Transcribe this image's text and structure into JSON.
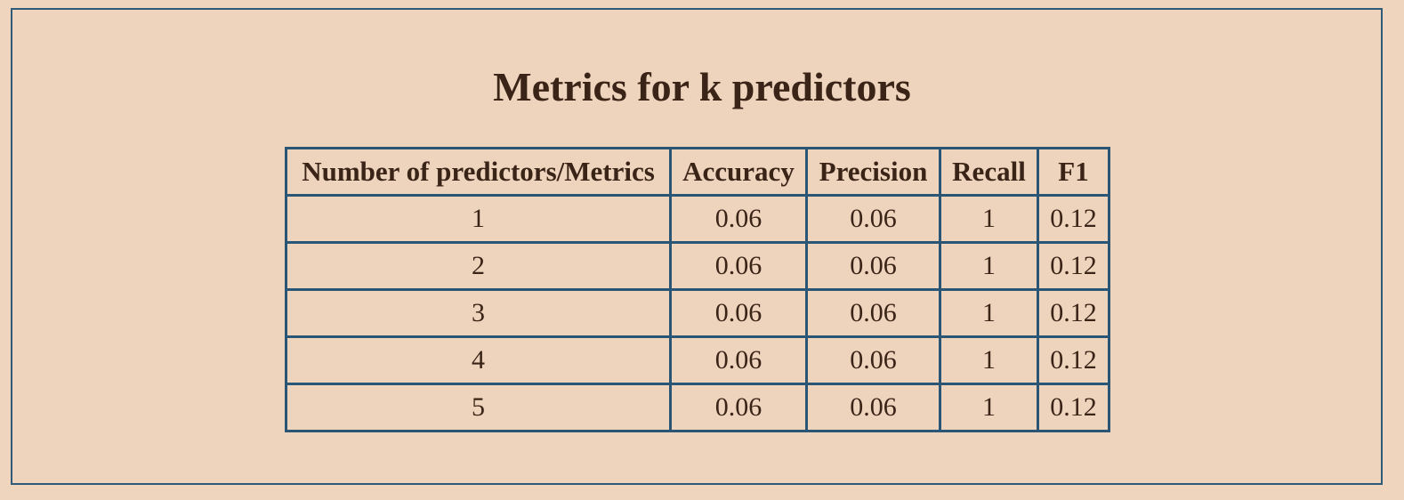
{
  "title": "Metrics for k predictors",
  "table": {
    "headers": [
      "Number of predictors/Metrics",
      "Accuracy",
      "Precision",
      "Recall",
      "F1"
    ],
    "rows": [
      [
        "1",
        "0.06",
        "0.06",
        "1",
        "0.12"
      ],
      [
        "2",
        "0.06",
        "0.06",
        "1",
        "0.12"
      ],
      [
        "3",
        "0.06",
        "0.06",
        "1",
        "0.12"
      ],
      [
        "4",
        "0.06",
        "0.06",
        "1",
        "0.12"
      ],
      [
        "5",
        "0.06",
        "0.06",
        "1",
        "0.12"
      ]
    ]
  },
  "colors": {
    "background": "#efd5bd",
    "border": "#2a5574",
    "text": "#3a2418"
  }
}
